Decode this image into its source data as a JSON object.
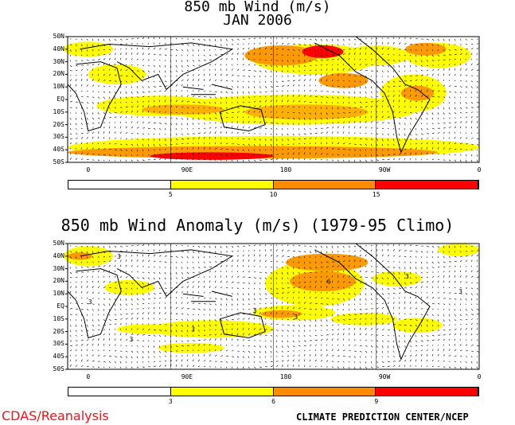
{
  "panel1": {
    "title_line1": "850 mb Wind (m/s)",
    "title_line2": "JAN 2006",
    "lat_labels": [
      "50N",
      "40N",
      "30N",
      "20N",
      "10N",
      "EQ",
      "10S",
      "20S",
      "30S",
      "40S",
      "50S"
    ],
    "lon_labels": [
      "0",
      "90E",
      "180",
      "90W",
      "0"
    ],
    "colorbar_labels": [
      "5",
      "10",
      "15"
    ],
    "colorbar_colors": [
      "#ffffff",
      "#ffff00",
      "#ff8c00",
      "#ff6400",
      "#ff0000"
    ]
  },
  "panel2": {
    "title": "850 mb Wind Anomaly (m/s) (1979-95 Climo)",
    "lat_labels": [
      "50N",
      "40N",
      "30N",
      "20N",
      "10N",
      "EQ",
      "10S",
      "20S",
      "30S",
      "40S",
      "50S"
    ],
    "lon_labels": [
      "0",
      "90E",
      "180",
      "90W",
      "0"
    ],
    "colorbar_labels": [
      "3",
      "6",
      "9"
    ],
    "colorbar_colors": [
      "#ffffff",
      "#ffff00",
      "#ff8c00",
      "#ff0000"
    ],
    "contour_labels": [
      "3",
      "3",
      "3",
      "6",
      "3",
      "3",
      "3",
      "3",
      "3"
    ]
  },
  "footer": {
    "left": "CDAS/Reanalysis",
    "right": "CLIMATE PREDICTION CENTER/NCEP"
  }
}
